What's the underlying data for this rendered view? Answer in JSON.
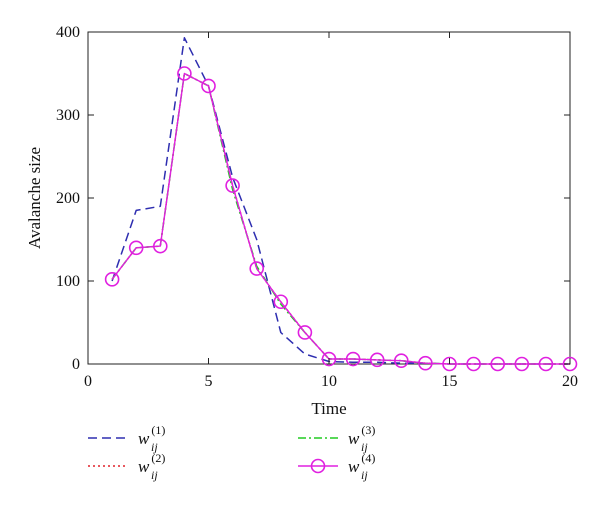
{
  "chart_data": {
    "type": "line",
    "xlabel": "Time",
    "ylabel": "Avalanche size",
    "xlim": [
      0,
      20
    ],
    "ylim": [
      0,
      400
    ],
    "xticks": [
      0,
      5,
      10,
      15,
      20
    ],
    "yticks": [
      0,
      100,
      200,
      300,
      400
    ],
    "grid": false,
    "legend_position": "below",
    "series": [
      {
        "name": "w_ij^(1)",
        "legend_main": "w",
        "legend_sub": "ij",
        "legend_sup": "(1)",
        "color": "#2e2eb0",
        "style": "dashed",
        "marker": "none",
        "x": [
          1,
          2,
          3,
          4,
          5,
          6,
          7,
          8,
          9,
          10,
          11,
          12,
          13,
          14,
          15,
          16,
          17,
          18,
          19,
          20
        ],
        "values": [
          100,
          185,
          190,
          393,
          335,
          225,
          150,
          38,
          12,
          3,
          2,
          2,
          1,
          1,
          0,
          0,
          0,
          0,
          0,
          0
        ]
      },
      {
        "name": "w_ij^(2)",
        "legend_main": "w",
        "legend_sub": "ij",
        "legend_sup": "(2)",
        "color": "#e0202a",
        "style": "dotted",
        "marker": "none",
        "x": [
          1,
          2,
          3,
          4,
          5,
          6,
          7,
          8,
          9,
          10,
          11,
          12,
          13,
          14,
          15,
          16,
          17,
          18,
          19,
          20
        ],
        "values": [
          102,
          140,
          142,
          350,
          335,
          215,
          115,
          75,
          38,
          6,
          6,
          5,
          4,
          1,
          0,
          0,
          0,
          0,
          0,
          0
        ]
      },
      {
        "name": "w_ij^(3)",
        "legend_main": "w",
        "legend_sub": "ij",
        "legend_sup": "(3)",
        "color": "#22cc22",
        "style": "dashdot",
        "marker": "none",
        "x": [
          1,
          2,
          3,
          4,
          5,
          6,
          7,
          8,
          9,
          10,
          11,
          12,
          13,
          14,
          15,
          16,
          17,
          18,
          19,
          20
        ],
        "values": [
          102,
          140,
          142,
          350,
          335,
          210,
          118,
          72,
          38,
          6,
          6,
          5,
          4,
          1,
          0,
          0,
          0,
          0,
          0,
          0
        ]
      },
      {
        "name": "w_ij^(4)",
        "legend_main": "w",
        "legend_sub": "ij",
        "legend_sup": "(4)",
        "color": "#e020e0",
        "style": "solid",
        "marker": "circle",
        "x": [
          1,
          2,
          3,
          4,
          5,
          6,
          7,
          8,
          9,
          10,
          11,
          12,
          13,
          14,
          15,
          16,
          17,
          18,
          19,
          20
        ],
        "values": [
          102,
          140,
          142,
          350,
          335,
          215,
          115,
          75,
          38,
          6,
          6,
          5,
          4,
          1,
          0,
          0,
          0,
          0,
          0,
          0
        ]
      }
    ]
  }
}
